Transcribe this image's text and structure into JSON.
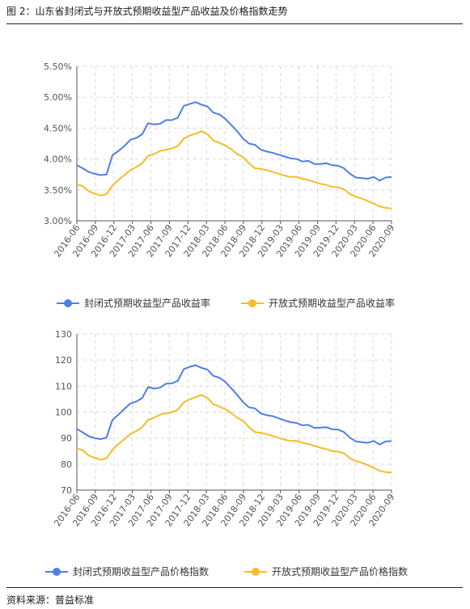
{
  "figure": {
    "title": "图 2：山东省封闭式与开放式预期收益型产品收益及价格指数走势",
    "source": "资料来源：普益标准"
  },
  "colors": {
    "blue": "#4F7EE6",
    "orange": "#F6BC2A"
  },
  "chart_data": [
    {
      "type": "line",
      "x_ticks": [
        "2016-06",
        "2016-09",
        "2016-12",
        "2017-03",
        "2017-06",
        "2017-09",
        "2017-12",
        "2018-03",
        "2018-06",
        "2018-09",
        "2018-12",
        "2019-03",
        "2019-06",
        "2019-09",
        "2019-12",
        "2020-03",
        "2020-06",
        "2020-09"
      ],
      "y_ticks": [
        "3.00%",
        "3.50%",
        "4.00%",
        "4.50%",
        "5.00%",
        "5.50%"
      ],
      "ylim": [
        3.0,
        5.5
      ],
      "grid": true,
      "legend": "bottom",
      "series": [
        {
          "name": "封闭式预期收益型产品收益率",
          "color": "#4F7EE6",
          "values": [
            3.9,
            3.85,
            3.79,
            3.76,
            3.74,
            3.75,
            4.06,
            4.13,
            4.21,
            4.31,
            4.34,
            4.4,
            4.58,
            4.56,
            4.57,
            4.63,
            4.63,
            4.67,
            4.86,
            4.89,
            4.92,
            4.88,
            4.85,
            4.75,
            4.72,
            4.65,
            4.55,
            4.45,
            4.33,
            4.25,
            4.23,
            4.15,
            4.12,
            4.1,
            4.07,
            4.04,
            4.01,
            4.0,
            3.96,
            3.97,
            3.92,
            3.92,
            3.93,
            3.9,
            3.89,
            3.85,
            3.76,
            3.7,
            3.69,
            3.68,
            3.71,
            3.65,
            3.7,
            3.71
          ]
        },
        {
          "name": "开放式预期收益型产品收益率",
          "color": "#F6BC2A",
          "values": [
            3.59,
            3.56,
            3.48,
            3.44,
            3.41,
            3.43,
            3.57,
            3.66,
            3.74,
            3.82,
            3.87,
            3.93,
            4.05,
            4.08,
            4.13,
            4.15,
            4.17,
            4.21,
            4.33,
            4.38,
            4.41,
            4.45,
            4.4,
            4.3,
            4.26,
            4.22,
            4.16,
            4.08,
            4.03,
            3.93,
            3.85,
            3.84,
            3.82,
            3.79,
            3.76,
            3.73,
            3.71,
            3.71,
            3.68,
            3.66,
            3.63,
            3.6,
            3.58,
            3.55,
            3.54,
            3.51,
            3.43,
            3.39,
            3.36,
            3.32,
            3.28,
            3.23,
            3.21,
            3.2
          ]
        }
      ]
    },
    {
      "type": "line",
      "x_ticks": [
        "2016-06",
        "2016-09",
        "2016-12",
        "2017-03",
        "2017-06",
        "2017-09",
        "2017-12",
        "2018-03",
        "2018-06",
        "2018-09",
        "2018-12",
        "2019-03",
        "2019-06",
        "2019-09",
        "2019-12",
        "2020-03",
        "2020-06",
        "2020-09"
      ],
      "y_ticks": [
        "70",
        "80",
        "90",
        "100",
        "110",
        "120",
        "130"
      ],
      "ylim": [
        70,
        130
      ],
      "grid": true,
      "legend": "bottom",
      "series": [
        {
          "name": "封闭式预期收益型产品价格指数",
          "color": "#4F7EE6",
          "values": [
            93.5,
            92.2,
            90.7,
            90.0,
            89.6,
            90.2,
            97.0,
            99.0,
            101.2,
            103.3,
            104.0,
            105.4,
            109.6,
            109.0,
            109.4,
            110.9,
            111.0,
            112.0,
            116.5,
            117.4,
            118.0,
            117.0,
            116.3,
            113.9,
            113.2,
            111.6,
            109.2,
            106.6,
            103.8,
            101.8,
            101.4,
            99.4,
            98.8,
            98.4,
            97.6,
            96.8,
            96.1,
            95.8,
            94.9,
            95.1,
            93.9,
            94.0,
            94.2,
            93.4,
            93.3,
            92.3,
            90.1,
            88.7,
            88.4,
            88.2,
            88.9,
            87.5,
            88.7,
            88.8
          ]
        },
        {
          "name": "开放式预期收益型产品价格指数",
          "color": "#F6BC2A",
          "values": [
            86.0,
            85.3,
            83.3,
            82.4,
            81.7,
            82.2,
            85.5,
            87.7,
            89.6,
            91.5,
            92.7,
            94.2,
            97.0,
            97.8,
            99.0,
            99.5,
            99.9,
            100.9,
            103.7,
            104.9,
            105.7,
            106.6,
            105.4,
            103.0,
            102.1,
            101.1,
            99.7,
            97.8,
            96.6,
            94.2,
            92.3,
            92.0,
            91.5,
            90.8,
            90.1,
            89.4,
            88.9,
            88.9,
            88.2,
            87.7,
            87.0,
            86.3,
            85.8,
            85.0,
            84.8,
            84.1,
            82.2,
            81.2,
            80.5,
            79.6,
            78.6,
            77.4,
            76.9,
            76.7
          ]
        }
      ]
    }
  ]
}
